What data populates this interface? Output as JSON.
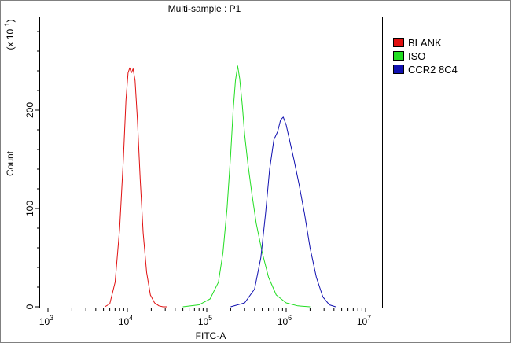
{
  "chart_data": {
    "type": "line",
    "title": "Multi-sample : P1",
    "xlabel": "FITC-A",
    "ylabel": "Count",
    "y_multiplier_label": "(x 10^1)",
    "x_scale": "log",
    "xlim": [
      1000,
      10000000
    ],
    "ylim": [
      0,
      280
    ],
    "x_ticks": [
      {
        "value": 1000,
        "base": "10",
        "exp": "3"
      },
      {
        "value": 10000,
        "base": "10",
        "exp": "4"
      },
      {
        "value": 100000,
        "base": "10",
        "exp": "5"
      },
      {
        "value": 1000000,
        "base": "10",
        "exp": "6"
      },
      {
        "value": 10000000,
        "base": "10",
        "exp": "7"
      }
    ],
    "y_ticks": [
      {
        "value": 0,
        "label": "0"
      },
      {
        "value": 100,
        "label": "100"
      },
      {
        "value": 200,
        "label": "200"
      }
    ],
    "legend_position": "top-right",
    "series": [
      {
        "name": "BLANK",
        "color": "#e01010",
        "x": [
          5200,
          6000,
          7000,
          8000,
          8900,
          9600,
          10200,
          10700,
          11200,
          11800,
          12500,
          13400,
          14500,
          15800,
          17500,
          19500,
          22000,
          25000,
          28000,
          32000
        ],
        "y": [
          0,
          3,
          25,
          80,
          150,
          210,
          238,
          243,
          238,
          242,
          230,
          190,
          130,
          75,
          35,
          12,
          4,
          1,
          0,
          0
        ]
      },
      {
        "name": "ISO",
        "color": "#22dd22",
        "x": [
          50000,
          80000,
          110000,
          140000,
          160000,
          180000,
          200000,
          215000,
          230000,
          245000,
          260000,
          280000,
          300000,
          330000,
          370000,
          420000,
          500000,
          600000,
          750000,
          1000000,
          1400000,
          2000000
        ],
        "y": [
          0,
          2,
          8,
          25,
          55,
          100,
          155,
          200,
          230,
          245,
          232,
          205,
          175,
          145,
          115,
          85,
          55,
          30,
          12,
          4,
          1,
          0
        ]
      },
      {
        "name": "CCR2 8C4",
        "color": "#1010b0",
        "x": [
          200000,
          300000,
          400000,
          480000,
          550000,
          620000,
          700000,
          780000,
          850000,
          920000,
          1000000,
          1100000,
          1250000,
          1450000,
          1700000,
          2000000,
          2400000,
          2900000,
          3500000,
          4200000
        ],
        "y": [
          0,
          4,
          18,
          50,
          95,
          140,
          170,
          178,
          190,
          193,
          185,
          170,
          150,
          125,
          95,
          60,
          30,
          10,
          2,
          0
        ]
      }
    ]
  }
}
